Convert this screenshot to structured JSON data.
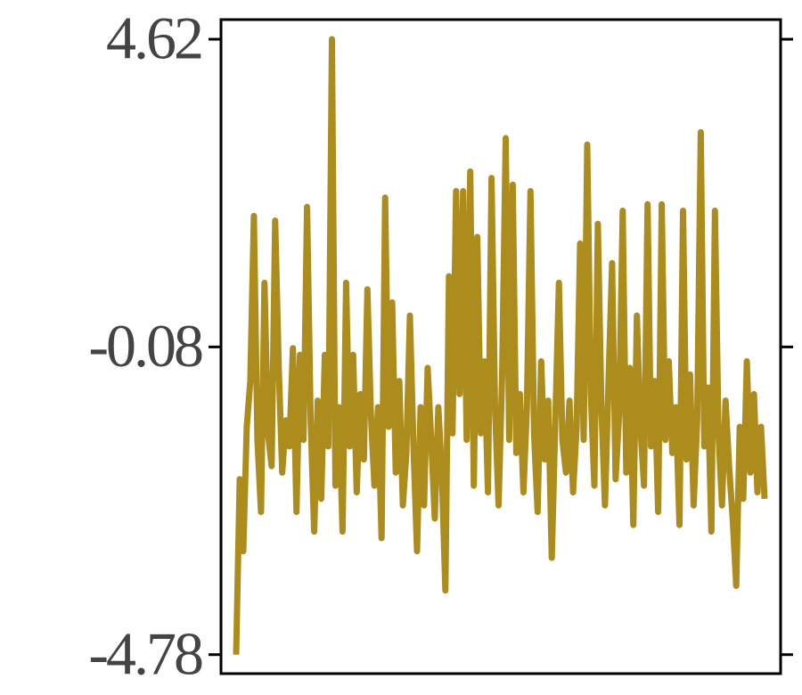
{
  "chart_data": {
    "type": "line",
    "color": "#ad8c1e",
    "ylim": [
      -5.07,
      4.92
    ],
    "yticks": [
      4.62,
      -0.08,
      -4.78
    ],
    "values": [
      -4.78,
      -2.1,
      -3.2,
      -1.3,
      -0.6,
      1.92,
      -1.5,
      -2.6,
      0.9,
      -1.4,
      -1.9,
      1.85,
      -0.4,
      -2.0,
      -1.2,
      -1.6,
      -0.1,
      -2.6,
      -0.2,
      -1.5,
      2.06,
      -1.2,
      -2.9,
      -0.9,
      -2.4,
      -0.2,
      -1.6,
      4.62,
      -2.2,
      -1.0,
      -2.9,
      0.9,
      -1.6,
      -0.2,
      -2.3,
      -0.8,
      -1.8,
      0.8,
      -1.1,
      -2.2,
      -1.0,
      -3.0,
      2.2,
      -1.3,
      0.6,
      -2.0,
      -0.6,
      -2.5,
      -1.7,
      0.4,
      -1.6,
      -3.2,
      -1.0,
      -2.5,
      -0.4,
      -1.5,
      -2.7,
      -1.0,
      -2.0,
      -3.8,
      1.0,
      -1.4,
      2.3,
      -0.8,
      2.3,
      -1.5,
      2.6,
      -2.2,
      1.6,
      -1.4,
      -0.3,
      -2.3,
      2.5,
      -1.0,
      -2.5,
      -0.5,
      3.11,
      -1.5,
      2.4,
      -1.7,
      -0.8,
      -2.3,
      -1.0,
      2.3,
      -1.4,
      -2.6,
      -0.3,
      -1.8,
      -0.9,
      -3.3,
      -1.2,
      0.9,
      -1.5,
      -2.0,
      -0.9,
      -2.3,
      -1.3,
      1.5,
      -1.5,
      3.01,
      -0.8,
      -2.2,
      1.8,
      -1.0,
      -2.5,
      -0.6,
      1.2,
      -2.1,
      -1.1,
      2.0,
      -2.0,
      -0.4,
      -2.8,
      0.4,
      -1.3,
      -2.2,
      2.1,
      -1.6,
      -0.6,
      -2.6,
      2.1,
      -1.5,
      -0.3,
      -1.7,
      -1.0,
      -2.8,
      2.0,
      -1.8,
      -0.5,
      -2.5,
      -1.2,
      3.2,
      -1.6,
      -0.7,
      -2.9,
      2.0,
      -1.4,
      -2.5,
      -0.9,
      -1.9,
      -2.7,
      -3.73,
      -1.3,
      -2.4,
      -0.3,
      -2.0,
      -0.8,
      -2.3,
      -1.3,
      -2.4
    ]
  }
}
